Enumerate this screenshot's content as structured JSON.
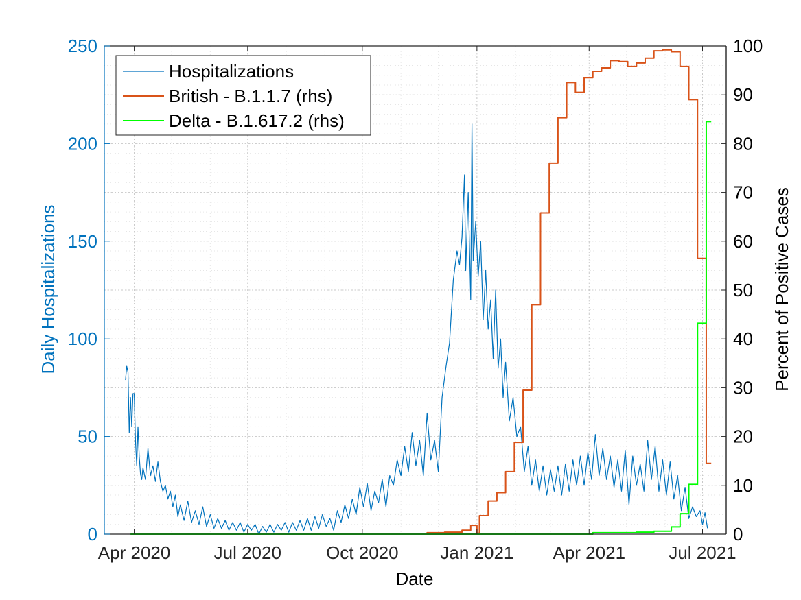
{
  "chart_data": {
    "type": "line",
    "xlabel": "Date",
    "ylabel_left": "Daily Hospitalizations",
    "ylabel_right": "Percent of Positive Cases",
    "x_range": [
      "2020-03-08",
      "2021-07-20"
    ],
    "x_ticks": [
      {
        "date": "2020-04-01",
        "label": "Apr 2020"
      },
      {
        "date": "2020-07-01",
        "label": "Jul 2020"
      },
      {
        "date": "2020-10-01",
        "label": "Oct 2020"
      },
      {
        "date": "2021-01-01",
        "label": "Jan 2021"
      },
      {
        "date": "2021-04-01",
        "label": "Apr 2021"
      },
      {
        "date": "2021-07-01",
        "label": "Jul 2021"
      }
    ],
    "ylim_left": [
      0,
      250
    ],
    "yticks_left": [
      "0",
      "50",
      "100",
      "150",
      "200",
      "250"
    ],
    "ylim_right": [
      0,
      100
    ],
    "yticks_right": [
      "0",
      "10",
      "20",
      "30",
      "40",
      "50",
      "60",
      "70",
      "80",
      "90",
      "100"
    ],
    "grid": true,
    "legend_position": "top-left",
    "colors": {
      "hospitalizations": "#0072BD",
      "british": "#D95319",
      "delta": "#00FF00",
      "left_axis": "#0072BD",
      "right_axis": "#000000"
    },
    "series": [
      {
        "name": "Hospitalizations",
        "axis": "left",
        "points": [
          [
            "2020-03-25",
            79
          ],
          [
            "2020-03-26",
            86
          ],
          [
            "2020-03-27",
            83
          ],
          [
            "2020-03-28",
            52
          ],
          [
            "2020-03-29",
            70
          ],
          [
            "2020-03-30",
            55
          ],
          [
            "2020-03-31",
            72
          ],
          [
            "2020-04-01",
            72
          ],
          [
            "2020-04-02",
            48
          ],
          [
            "2020-04-03",
            35
          ],
          [
            "2020-04-04",
            55
          ],
          [
            "2020-04-05",
            40
          ],
          [
            "2020-04-06",
            31
          ],
          [
            "2020-04-07",
            28
          ],
          [
            "2020-04-08",
            34
          ],
          [
            "2020-04-10",
            28
          ],
          [
            "2020-04-12",
            44
          ],
          [
            "2020-04-14",
            30
          ],
          [
            "2020-04-16",
            35
          ],
          [
            "2020-04-18",
            27
          ],
          [
            "2020-04-20",
            37
          ],
          [
            "2020-04-22",
            27
          ],
          [
            "2020-04-24",
            22
          ],
          [
            "2020-04-26",
            25
          ],
          [
            "2020-04-28",
            18
          ],
          [
            "2020-04-30",
            22
          ],
          [
            "2020-05-02",
            14
          ],
          [
            "2020-05-04",
            20
          ],
          [
            "2020-05-06",
            9
          ],
          [
            "2020-05-08",
            15
          ],
          [
            "2020-05-11",
            7
          ],
          [
            "2020-05-14",
            17
          ],
          [
            "2020-05-17",
            6
          ],
          [
            "2020-05-20",
            12
          ],
          [
            "2020-05-23",
            5
          ],
          [
            "2020-05-26",
            14
          ],
          [
            "2020-05-29",
            4
          ],
          [
            "2020-06-01",
            10
          ],
          [
            "2020-06-04",
            3
          ],
          [
            "2020-06-07",
            8
          ],
          [
            "2020-06-10",
            3
          ],
          [
            "2020-06-13",
            7
          ],
          [
            "2020-06-16",
            2
          ],
          [
            "2020-06-19",
            6
          ],
          [
            "2020-06-22",
            2
          ],
          [
            "2020-06-25",
            6
          ],
          [
            "2020-06-28",
            1
          ],
          [
            "2020-07-01",
            5
          ],
          [
            "2020-07-04",
            2
          ],
          [
            "2020-07-07",
            5
          ],
          [
            "2020-07-10",
            0
          ],
          [
            "2020-07-13",
            4
          ],
          [
            "2020-07-16",
            1
          ],
          [
            "2020-07-19",
            5
          ],
          [
            "2020-07-22",
            1
          ],
          [
            "2020-07-25",
            5
          ],
          [
            "2020-07-28",
            2
          ],
          [
            "2020-07-31",
            6
          ],
          [
            "2020-08-03",
            1
          ],
          [
            "2020-08-06",
            6
          ],
          [
            "2020-08-09",
            2
          ],
          [
            "2020-08-12",
            7
          ],
          [
            "2020-08-15",
            2
          ],
          [
            "2020-08-18",
            8
          ],
          [
            "2020-08-21",
            2
          ],
          [
            "2020-08-24",
            9
          ],
          [
            "2020-08-27",
            3
          ],
          [
            "2020-08-30",
            10
          ],
          [
            "2020-09-02",
            4
          ],
          [
            "2020-09-05",
            8
          ],
          [
            "2020-09-08",
            2
          ],
          [
            "2020-09-11",
            12
          ],
          [
            "2020-09-14",
            6
          ],
          [
            "2020-09-17",
            15
          ],
          [
            "2020-09-20",
            8
          ],
          [
            "2020-09-23",
            18
          ],
          [
            "2020-09-26",
            10
          ],
          [
            "2020-09-29",
            24
          ],
          [
            "2020-10-02",
            14
          ],
          [
            "2020-10-05",
            26
          ],
          [
            "2020-10-08",
            12
          ],
          [
            "2020-10-11",
            22
          ],
          [
            "2020-10-14",
            16
          ],
          [
            "2020-10-17",
            28
          ],
          [
            "2020-10-20",
            14
          ],
          [
            "2020-10-23",
            30
          ],
          [
            "2020-10-26",
            25
          ],
          [
            "2020-10-29",
            38
          ],
          [
            "2020-11-01",
            30
          ],
          [
            "2020-11-04",
            45
          ],
          [
            "2020-11-07",
            32
          ],
          [
            "2020-11-10",
            52
          ],
          [
            "2020-11-13",
            35
          ],
          [
            "2020-11-16",
            48
          ],
          [
            "2020-11-19",
            30
          ],
          [
            "2020-11-22",
            62
          ],
          [
            "2020-11-25",
            38
          ],
          [
            "2020-11-28",
            48
          ],
          [
            "2020-12-01",
            32
          ],
          [
            "2020-12-04",
            70
          ],
          [
            "2020-12-07",
            85
          ],
          [
            "2020-12-10",
            98
          ],
          [
            "2020-12-13",
            130
          ],
          [
            "2020-12-16",
            145
          ],
          [
            "2020-12-18",
            138
          ],
          [
            "2020-12-20",
            152
          ],
          [
            "2020-12-22",
            184
          ],
          [
            "2020-12-23",
            135
          ],
          [
            "2020-12-25",
            175
          ],
          [
            "2020-12-27",
            120
          ],
          [
            "2020-12-28",
            210
          ],
          [
            "2020-12-29",
            140
          ],
          [
            "2020-12-31",
            160
          ],
          [
            "2021-01-02",
            132
          ],
          [
            "2021-01-04",
            150
          ],
          [
            "2021-01-06",
            110
          ],
          [
            "2021-01-08",
            135
          ],
          [
            "2021-01-10",
            105
          ],
          [
            "2021-01-12",
            120
          ],
          [
            "2021-01-14",
            90
          ],
          [
            "2021-01-16",
            125
          ],
          [
            "2021-01-18",
            85
          ],
          [
            "2021-01-20",
            100
          ],
          [
            "2021-01-22",
            70
          ],
          [
            "2021-01-24",
            88
          ],
          [
            "2021-01-27",
            58
          ],
          [
            "2021-01-30",
            70
          ],
          [
            "2021-02-02",
            50
          ],
          [
            "2021-02-05",
            55
          ],
          [
            "2021-02-08",
            32
          ],
          [
            "2021-02-11",
            45
          ],
          [
            "2021-02-14",
            25
          ],
          [
            "2021-02-17",
            38
          ],
          [
            "2021-02-20",
            22
          ],
          [
            "2021-02-23",
            35
          ],
          [
            "2021-02-26",
            20
          ],
          [
            "2021-03-01",
            33
          ],
          [
            "2021-03-04",
            22
          ],
          [
            "2021-03-07",
            35
          ],
          [
            "2021-03-10",
            20
          ],
          [
            "2021-03-13",
            36
          ],
          [
            "2021-03-16",
            22
          ],
          [
            "2021-03-19",
            38
          ],
          [
            "2021-03-22",
            25
          ],
          [
            "2021-03-25",
            40
          ],
          [
            "2021-03-28",
            25
          ],
          [
            "2021-03-31",
            42
          ],
          [
            "2021-04-03",
            28
          ],
          [
            "2021-04-06",
            51
          ],
          [
            "2021-04-09",
            30
          ],
          [
            "2021-04-12",
            44
          ],
          [
            "2021-04-15",
            28
          ],
          [
            "2021-04-18",
            40
          ],
          [
            "2021-04-21",
            24
          ],
          [
            "2021-04-24",
            38
          ],
          [
            "2021-04-27",
            22
          ],
          [
            "2021-04-30",
            43
          ],
          [
            "2021-05-03",
            15
          ],
          [
            "2021-05-06",
            40
          ],
          [
            "2021-05-09",
            25
          ],
          [
            "2021-05-12",
            36
          ],
          [
            "2021-05-15",
            22
          ],
          [
            "2021-05-18",
            48
          ],
          [
            "2021-05-21",
            28
          ],
          [
            "2021-05-24",
            45
          ],
          [
            "2021-05-27",
            22
          ],
          [
            "2021-05-30",
            38
          ],
          [
            "2021-06-02",
            20
          ],
          [
            "2021-06-05",
            37
          ],
          [
            "2021-06-08",
            18
          ],
          [
            "2021-06-11",
            30
          ],
          [
            "2021-06-14",
            12
          ],
          [
            "2021-06-17",
            24
          ],
          [
            "2021-06-20",
            8
          ],
          [
            "2021-06-23",
            14
          ],
          [
            "2021-06-26",
            9
          ],
          [
            "2021-06-29",
            12
          ],
          [
            "2021-07-01",
            5
          ],
          [
            "2021-07-03",
            11
          ],
          [
            "2021-07-05",
            3
          ]
        ]
      },
      {
        "name": "British - B.1.1.7 (rhs)",
        "axis": "right",
        "points": [
          [
            "2020-11-22",
            0
          ],
          [
            "2020-11-22",
            0.3
          ],
          [
            "2020-12-06",
            0.3
          ],
          [
            "2020-12-06",
            0.4
          ],
          [
            "2020-12-20",
            0.4
          ],
          [
            "2020-12-20",
            0.8
          ],
          [
            "2020-12-27",
            0.8
          ],
          [
            "2020-12-27",
            1.8
          ],
          [
            "2021-01-01",
            1.8
          ],
          [
            "2021-01-01",
            0.2
          ],
          [
            "2021-01-03",
            0.2
          ],
          [
            "2021-01-03",
            3.8
          ],
          [
            "2021-01-10",
            3.8
          ],
          [
            "2021-01-10",
            6.8
          ],
          [
            "2021-01-17",
            6.8
          ],
          [
            "2021-01-17",
            8.5
          ],
          [
            "2021-01-24",
            8.5
          ],
          [
            "2021-01-24",
            12.8
          ],
          [
            "2021-01-31",
            12.8
          ],
          [
            "2021-01-31",
            18.8
          ],
          [
            "2021-02-07",
            18.8
          ],
          [
            "2021-02-07",
            29.5
          ],
          [
            "2021-02-14",
            29.5
          ],
          [
            "2021-02-14",
            47.0
          ],
          [
            "2021-02-21",
            47.0
          ],
          [
            "2021-02-21",
            65.8
          ],
          [
            "2021-02-28",
            65.8
          ],
          [
            "2021-02-28",
            76.0
          ],
          [
            "2021-03-07",
            76.0
          ],
          [
            "2021-03-07",
            85.3
          ],
          [
            "2021-03-14",
            85.3
          ],
          [
            "2021-03-14",
            92.5
          ],
          [
            "2021-03-21",
            92.5
          ],
          [
            "2021-03-21",
            90.5
          ],
          [
            "2021-03-28",
            90.5
          ],
          [
            "2021-03-28",
            93.5
          ],
          [
            "2021-04-04",
            93.5
          ],
          [
            "2021-04-04",
            94.8
          ],
          [
            "2021-04-11",
            94.8
          ],
          [
            "2021-04-11",
            95.5
          ],
          [
            "2021-04-18",
            95.5
          ],
          [
            "2021-04-18",
            97.0
          ],
          [
            "2021-04-25",
            97.0
          ],
          [
            "2021-04-25",
            96.8
          ],
          [
            "2021-05-02",
            96.8
          ],
          [
            "2021-05-02",
            95.8
          ],
          [
            "2021-05-09",
            95.8
          ],
          [
            "2021-05-09",
            96.5
          ],
          [
            "2021-05-16",
            96.5
          ],
          [
            "2021-05-16",
            97.5
          ],
          [
            "2021-05-23",
            97.5
          ],
          [
            "2021-05-23",
            99.0
          ],
          [
            "2021-05-30",
            99.0
          ],
          [
            "2021-05-30",
            99.2
          ],
          [
            "2021-06-06",
            99.2
          ],
          [
            "2021-06-06",
            98.8
          ],
          [
            "2021-06-13",
            98.8
          ],
          [
            "2021-06-13",
            95.8
          ],
          [
            "2021-06-20",
            95.8
          ],
          [
            "2021-06-20",
            89.0
          ],
          [
            "2021-06-27",
            89.0
          ],
          [
            "2021-06-27",
            56.5
          ],
          [
            "2021-07-04",
            56.5
          ],
          [
            "2021-07-04",
            14.5
          ],
          [
            "2021-07-08",
            14.5
          ]
        ]
      },
      {
        "name": "Delta - B.1.617.2 (rhs)",
        "axis": "right",
        "points": [
          [
            "2020-03-29",
            0
          ],
          [
            "2021-04-04",
            0
          ],
          [
            "2021-04-04",
            0.3
          ],
          [
            "2021-05-09",
            0.3
          ],
          [
            "2021-05-09",
            0.4
          ],
          [
            "2021-05-23",
            0.4
          ],
          [
            "2021-05-23",
            0.6
          ],
          [
            "2021-06-06",
            0.6
          ],
          [
            "2021-06-06",
            1.5
          ],
          [
            "2021-06-13",
            1.5
          ],
          [
            "2021-06-13",
            4.2
          ],
          [
            "2021-06-20",
            4.2
          ],
          [
            "2021-06-20",
            10.2
          ],
          [
            "2021-06-27",
            10.2
          ],
          [
            "2021-06-27",
            43.2
          ],
          [
            "2021-07-04",
            43.2
          ],
          [
            "2021-07-04",
            84.5
          ],
          [
            "2021-07-08",
            84.5
          ]
        ]
      }
    ]
  }
}
